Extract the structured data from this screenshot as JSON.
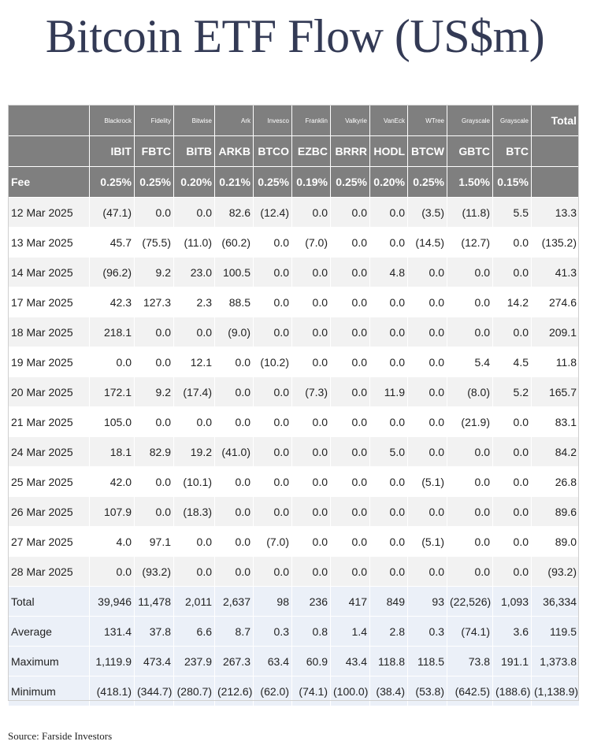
{
  "title": "Bitcoin ETF Flow (US$m)",
  "source": "Source: Farside Investors",
  "issuers": [
    "Blackrock",
    "Fidelity",
    "Bitwise",
    "Ark",
    "Invesco",
    "Franklin",
    "Valkyrie",
    "VanEck",
    "WTree",
    "Grayscale",
    "Grayscale"
  ],
  "total_header": "Total",
  "tickers": [
    "IBIT",
    "FBTC",
    "BITB",
    "ARKB",
    "BTCO",
    "EZBC",
    "BRRR",
    "HODL",
    "BTCW",
    "GBTC",
    "BTC"
  ],
  "fee_label": "Fee",
  "fees": [
    "0.25%",
    "0.25%",
    "0.20%",
    "0.21%",
    "0.25%",
    "0.19%",
    "0.25%",
    "0.20%",
    "0.25%",
    "1.50%",
    "0.15%"
  ],
  "rows": [
    {
      "date": "12 Mar 2025",
      "values": [
        "(47.1)",
        "0.0",
        "0.0",
        "82.6",
        "(12.4)",
        "0.0",
        "0.0",
        "0.0",
        "(3.5)",
        "(11.8)",
        "5.5"
      ],
      "total": "13.3"
    },
    {
      "date": "13 Mar 2025",
      "values": [
        "45.7",
        "(75.5)",
        "(11.0)",
        "(60.2)",
        "0.0",
        "(7.0)",
        "0.0",
        "0.0",
        "(14.5)",
        "(12.7)",
        "0.0"
      ],
      "total": "(135.2)"
    },
    {
      "date": "14 Mar 2025",
      "values": [
        "(96.2)",
        "9.2",
        "23.0",
        "100.5",
        "0.0",
        "0.0",
        "0.0",
        "4.8",
        "0.0",
        "0.0",
        "0.0"
      ],
      "total": "41.3"
    },
    {
      "date": "17 Mar 2025",
      "values": [
        "42.3",
        "127.3",
        "2.3",
        "88.5",
        "0.0",
        "0.0",
        "0.0",
        "0.0",
        "0.0",
        "0.0",
        "14.2"
      ],
      "total": "274.6"
    },
    {
      "date": "18 Mar 2025",
      "values": [
        "218.1",
        "0.0",
        "0.0",
        "(9.0)",
        "0.0",
        "0.0",
        "0.0",
        "0.0",
        "0.0",
        "0.0",
        "0.0"
      ],
      "total": "209.1"
    },
    {
      "date": "19 Mar 2025",
      "values": [
        "0.0",
        "0.0",
        "12.1",
        "0.0",
        "(10.2)",
        "0.0",
        "0.0",
        "0.0",
        "0.0",
        "5.4",
        "4.5"
      ],
      "total": "11.8"
    },
    {
      "date": "20 Mar 2025",
      "values": [
        "172.1",
        "9.2",
        "(17.4)",
        "0.0",
        "0.0",
        "(7.3)",
        "0.0",
        "11.9",
        "0.0",
        "(8.0)",
        "5.2"
      ],
      "total": "165.7"
    },
    {
      "date": "21 Mar 2025",
      "values": [
        "105.0",
        "0.0",
        "0.0",
        "0.0",
        "0.0",
        "0.0",
        "0.0",
        "0.0",
        "0.0",
        "(21.9)",
        "0.0"
      ],
      "total": "83.1"
    },
    {
      "date": "24 Mar 2025",
      "values": [
        "18.1",
        "82.9",
        "19.2",
        "(41.0)",
        "0.0",
        "0.0",
        "0.0",
        "5.0",
        "0.0",
        "0.0",
        "0.0"
      ],
      "total": "84.2"
    },
    {
      "date": "25 Mar 2025",
      "values": [
        "42.0",
        "0.0",
        "(10.1)",
        "0.0",
        "0.0",
        "0.0",
        "0.0",
        "0.0",
        "(5.1)",
        "0.0",
        "0.0"
      ],
      "total": "26.8"
    },
    {
      "date": "26 Mar 2025",
      "values": [
        "107.9",
        "0.0",
        "(18.3)",
        "0.0",
        "0.0",
        "0.0",
        "0.0",
        "0.0",
        "0.0",
        "0.0",
        "0.0"
      ],
      "total": "89.6"
    },
    {
      "date": "27 Mar 2025",
      "values": [
        "4.0",
        "97.1",
        "0.0",
        "0.0",
        "(7.0)",
        "0.0",
        "0.0",
        "0.0",
        "(5.1)",
        "0.0",
        "0.0"
      ],
      "total": "89.0"
    },
    {
      "date": "28 Mar 2025",
      "values": [
        "0.0",
        "(93.2)",
        "0.0",
        "0.0",
        "0.0",
        "0.0",
        "0.0",
        "0.0",
        "0.0",
        "0.0",
        "0.0"
      ],
      "total": "(93.2)"
    }
  ],
  "stats": [
    {
      "label": "Total",
      "values": [
        "39,946",
        "11,478",
        "2,011",
        "2,637",
        "98",
        "236",
        "417",
        "849",
        "93",
        "(22,526)",
        "1,093"
      ],
      "total": "36,334"
    },
    {
      "label": "Average",
      "values": [
        "131.4",
        "37.8",
        "6.6",
        "8.7",
        "0.3",
        "0.8",
        "1.4",
        "2.8",
        "0.3",
        "(74.1)",
        "3.6"
      ],
      "total": "119.5"
    },
    {
      "label": "Maximum",
      "values": [
        "1,119.9",
        "473.4",
        "237.9",
        "267.3",
        "63.4",
        "60.9",
        "43.4",
        "118.8",
        "118.5",
        "73.8",
        "191.1"
      ],
      "total": "1,373.8"
    },
    {
      "label": "Minimum",
      "values": [
        "(418.1)",
        "(344.7)",
        "(280.7)",
        "(212.6)",
        "(62.0)",
        "(74.1)",
        "(100.0)",
        "(38.4)",
        "(53.8)",
        "(642.5)",
        "(188.6)"
      ],
      "total": "(1,138.9)"
    }
  ],
  "colors": {
    "header_bg": "#7f7f7f",
    "negative": "#d0021b",
    "row_alt": "#f2f2f2",
    "stat_bg": "#ebf0f8",
    "title": "#333a55"
  }
}
